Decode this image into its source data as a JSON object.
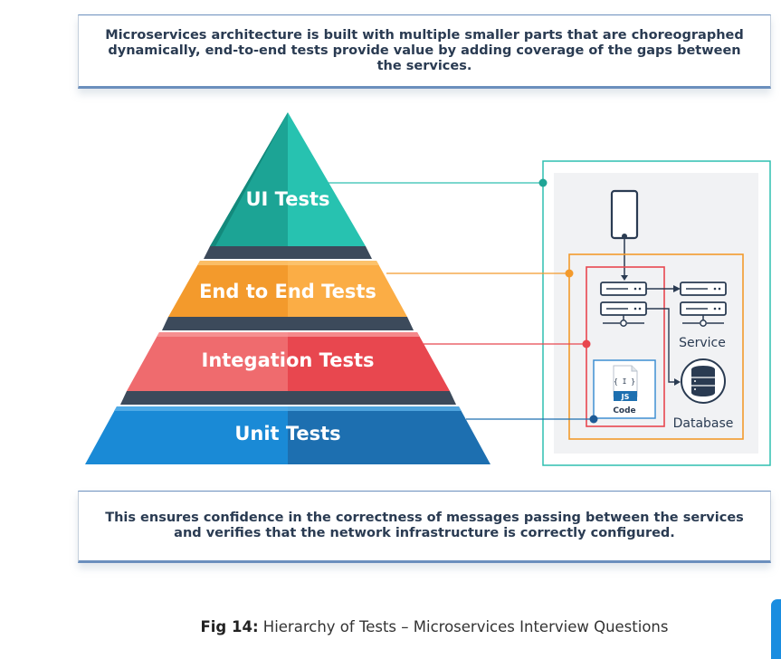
{
  "top_text": "Microservices architecture is built with multiple smaller parts that are choreographed dynamically, end-to-end tests provide value by adding coverage  of the gaps between the services.",
  "pyramid": {
    "tiers": [
      {
        "label": "UI Tests",
        "color": "#1fb4a3"
      },
      {
        "label": "End to End Tests",
        "color": "#f39a2c"
      },
      {
        "label": "Integation Tests",
        "color": "#e8474f"
      },
      {
        "label": "Unit Tests",
        "color": "#1d7cc4"
      }
    ]
  },
  "architecture": {
    "service_label": "Service",
    "database_label": "Database",
    "code_badge": "{ I }",
    "code_lang": "JS",
    "code_label": "Code"
  },
  "bottom_text": "This ensures confidence in the correctness of messages passing between the services and verifies that the network infrastructure is correctly configured.",
  "caption": {
    "prefix": "Fig 14:",
    "text": " Hierarchy of Tests – Microservices Interview Questions"
  },
  "colors": {
    "teal": "#1fb4a3",
    "orange": "#f39a2c",
    "red": "#e8474f",
    "blue": "#1d7cc4",
    "navy": "#2a3b52"
  }
}
